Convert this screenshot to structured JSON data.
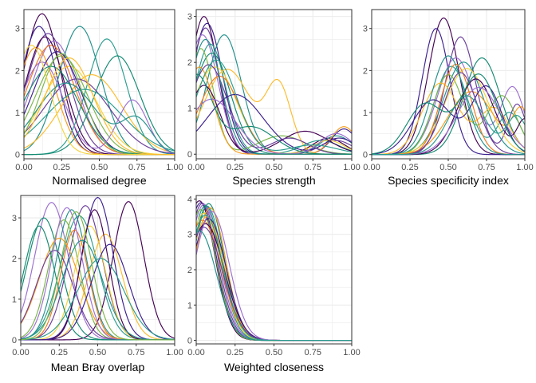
{
  "colors": {
    "palette": [
      "#440154",
      "#3b1f8f",
      "#6a3d9a",
      "#9c6fd0",
      "#21908c",
      "#2a9d8f",
      "#138a72",
      "#7ab648",
      "#f5d33b",
      "#fdbb2d",
      "#f89c1c",
      "#f37a1f"
    ],
    "grid": "#ebebeb",
    "panel_border": "#333333",
    "background": "#ffffff"
  },
  "chart_data": [
    {
      "type": "line",
      "xlabel": "Normalised degree",
      "xlim": [
        0,
        1
      ],
      "ylim": [
        -0.1,
        3.45
      ],
      "x_ticks": [
        0,
        0.25,
        0.5,
        0.75,
        1
      ],
      "x_tick_labels": [
        "0.00",
        "0.25",
        "0.50",
        "0.75",
        "1.00"
      ],
      "y_ticks": [
        0,
        1,
        2,
        3
      ],
      "y_tick_labels": [
        "0",
        "1",
        "2",
        "3"
      ],
      "grid": true,
      "series": [
        {
          "peaks": [
            [
              0.12,
              3.35,
              0.12
            ]
          ]
        },
        {
          "peaks": [
            [
              0.1,
              3.05,
              0.12
            ]
          ]
        },
        {
          "peaks": [
            [
              0.16,
              2.88,
              0.14
            ]
          ]
        },
        {
          "peaks": [
            [
              0.2,
              2.7,
              0.15
            ]
          ]
        },
        {
          "peaks": [
            [
              0.37,
              3.05,
              0.14
            ]
          ]
        },
        {
          "peaks": [
            [
              0.55,
              2.75,
              0.13
            ]
          ]
        },
        {
          "peaks": [
            [
              0.62,
              2.35,
              0.15
            ]
          ]
        },
        {
          "peaks": [
            [
              0.25,
              2.35,
              0.17
            ]
          ]
        },
        {
          "peaks": [
            [
              0.3,
              2.1,
              0.18
            ]
          ]
        },
        {
          "peaks": [
            [
              0.45,
              1.9,
              0.2
            ]
          ]
        },
        {
          "peaks": [
            [
              0.08,
              2.55,
              0.13
            ]
          ]
        },
        {
          "peaks": [
            [
              0.18,
              2.6,
              0.16
            ]
          ]
        },
        {
          "peaks": [
            [
              0.14,
              2.8,
              0.13
            ]
          ]
        },
        {
          "peaks": [
            [
              0.22,
              2.45,
              0.16
            ]
          ]
        },
        {
          "peaks": [
            [
              0.35,
              1.8,
              0.22
            ]
          ]
        },
        {
          "peaks": [
            [
              0.12,
              2.2,
              0.14
            ],
            [
              0.72,
              1.3,
              0.1
            ]
          ]
        },
        {
          "peaks": [
            [
              0.28,
              1.7,
              0.2
            ],
            [
              0.75,
              0.8,
              0.1
            ]
          ]
        },
        {
          "peaks": [
            [
              0.4,
              1.55,
              0.25
            ]
          ]
        },
        {
          "peaks": [
            [
              0.18,
              2.1,
              0.18
            ]
          ]
        },
        {
          "peaks": [
            [
              0.25,
              2.4,
              0.14
            ]
          ]
        },
        {
          "peaks": [
            [
              0.05,
              2.6,
              0.12
            ]
          ]
        },
        {
          "peaks": [
            [
              0.3,
              2.3,
              0.16
            ]
          ]
        }
      ]
    },
    {
      "type": "line",
      "xlabel": "Species strength",
      "xlim": [
        0,
        1
      ],
      "ylim": [
        -0.1,
        3.15
      ],
      "x_ticks": [
        0,
        0.25,
        0.5,
        0.75,
        1
      ],
      "x_tick_labels": [
        "0.00",
        "0.25",
        "0.50",
        "0.75",
        "1.00"
      ],
      "y_ticks": [
        0,
        1,
        2,
        3
      ],
      "y_tick_labels": [
        "0",
        "1",
        "2",
        "3"
      ],
      "grid": true,
      "series": [
        {
          "peaks": [
            [
              0.05,
              3.0,
              0.09
            ],
            [
              0.85,
              0.35,
              0.1
            ]
          ]
        },
        {
          "peaks": [
            [
              0.07,
              2.85,
              0.1
            ],
            [
              0.95,
              0.55,
              0.08
            ]
          ]
        },
        {
          "peaks": [
            [
              0.06,
              2.75,
              0.09
            ],
            [
              0.9,
              0.3,
              0.1
            ]
          ]
        },
        {
          "peaks": [
            [
              0.04,
              2.6,
              0.1
            ]
          ]
        },
        {
          "peaks": [
            [
              0.18,
              2.6,
              0.11
            ],
            [
              0.9,
              0.4,
              0.1
            ]
          ]
        },
        {
          "peaks": [
            [
              0.09,
              2.4,
              0.1
            ],
            [
              0.8,
              0.3,
              0.12
            ]
          ]
        },
        {
          "peaks": [
            [
              0.1,
              2.2,
              0.12
            ]
          ]
        },
        {
          "peaks": [
            [
              0.03,
              2.3,
              0.08
            ],
            [
              0.55,
              0.4,
              0.15
            ]
          ]
        },
        {
          "peaks": [
            [
              0.12,
              1.9,
              0.14
            ],
            [
              0.85,
              0.3,
              0.1
            ]
          ]
        },
        {
          "peaks": [
            [
              0.2,
              1.85,
              0.15
            ],
            [
              0.53,
              1.45,
              0.08
            ]
          ]
        },
        {
          "peaks": [
            [
              0.02,
              1.9,
              0.09
            ],
            [
              0.95,
              0.6,
              0.08
            ]
          ]
        },
        {
          "peaks": [
            [
              0.15,
              1.7,
              0.13
            ]
          ]
        },
        {
          "peaks": [
            [
              0.05,
              1.5,
              0.1
            ],
            [
              0.7,
              0.5,
              0.15
            ]
          ]
        },
        {
          "peaks": [
            [
              0.25,
              1.3,
              0.18
            ],
            [
              0.92,
              0.35,
              0.1
            ]
          ]
        },
        {
          "peaks": [
            [
              0.08,
              1.95,
              0.12
            ],
            [
              0.6,
              0.35,
              0.12
            ]
          ]
        },
        {
          "peaks": [
            [
              0.1,
              1.2,
              0.15
            ],
            [
              0.9,
              0.45,
              0.1
            ]
          ]
        },
        {
          "peaks": [
            [
              0.06,
              2.5,
              0.1
            ]
          ]
        },
        {
          "peaks": [
            [
              0.13,
              2.05,
              0.13
            ],
            [
              0.75,
              0.2,
              0.15
            ]
          ]
        },
        {
          "peaks": [
            [
              0.0,
              1.7,
              0.1
            ],
            [
              0.35,
              0.6,
              0.15
            ]
          ]
        }
      ]
    },
    {
      "type": "line",
      "xlabel": "Species specificity index",
      "xlim": [
        0,
        1
      ],
      "ylim": [
        -0.1,
        3.45
      ],
      "x_ticks": [
        0,
        0.25,
        0.5,
        0.75,
        1
      ],
      "x_tick_labels": [
        "0.00",
        "0.25",
        "0.50",
        "0.75",
        "1.00"
      ],
      "y_ticks": [
        0,
        1,
        2,
        3
      ],
      "y_tick_labels": [
        "0",
        "1",
        "2",
        "3"
      ],
      "grid": true,
      "series": [
        {
          "peaks": [
            [
              0.47,
              3.25,
              0.1
            ]
          ]
        },
        {
          "peaks": [
            [
              0.42,
              3.0,
              0.09
            ]
          ]
        },
        {
          "peaks": [
            [
              0.58,
              2.8,
              0.1
            ],
            [
              0.95,
              1.2,
              0.06
            ]
          ]
        },
        {
          "peaks": [
            [
              0.55,
              2.3,
              0.12
            ],
            [
              0.92,
              1.6,
              0.08
            ]
          ]
        },
        {
          "peaks": [
            [
              0.6,
              2.2,
              0.13
            ]
          ]
        },
        {
          "peaks": [
            [
              0.52,
              2.1,
              0.11
            ],
            [
              0.9,
              1.0,
              0.08
            ]
          ]
        },
        {
          "peaks": [
            [
              0.72,
              2.3,
              0.12
            ]
          ]
        },
        {
          "peaks": [
            [
              0.5,
              1.9,
              0.1
            ],
            [
              0.85,
              1.4,
              0.1
            ]
          ]
        },
        {
          "peaks": [
            [
              0.62,
              2.05,
              0.14
            ]
          ]
        },
        {
          "peaks": [
            [
              0.45,
              1.7,
              0.12
            ],
            [
              0.8,
              1.1,
              0.1
            ]
          ]
        },
        {
          "peaks": [
            [
              0.65,
              1.5,
              0.15
            ],
            [
              0.98,
              1.0,
              0.06
            ]
          ]
        },
        {
          "peaks": [
            [
              0.55,
              2.15,
              0.1
            ]
          ]
        },
        {
          "peaks": [
            [
              0.68,
              1.8,
              0.12
            ],
            [
              1.0,
              0.8,
              0.05
            ]
          ]
        },
        {
          "peaks": [
            [
              0.4,
              1.3,
              0.13
            ],
            [
              0.75,
              1.6,
              0.1
            ]
          ]
        },
        {
          "peaks": [
            [
              0.58,
              1.95,
              0.11
            ]
          ]
        },
        {
          "peaks": [
            [
              0.7,
              1.6,
              0.14
            ]
          ]
        },
        {
          "peaks": [
            [
              0.5,
              2.35,
              0.11
            ]
          ]
        },
        {
          "peaks": [
            [
              0.62,
              1.4,
              0.12
            ],
            [
              0.95,
              0.9,
              0.07
            ]
          ]
        },
        {
          "peaks": [
            [
              0.35,
              1.2,
              0.12
            ],
            [
              0.7,
              1.9,
              0.12
            ]
          ]
        }
      ]
    },
    {
      "type": "line",
      "xlabel": "Mean Bray overlap",
      "xlim": [
        0,
        1
      ],
      "ylim": [
        -0.1,
        3.55
      ],
      "x_ticks": [
        0,
        0.25,
        0.5,
        0.75,
        1
      ],
      "x_tick_labels": [
        "0.00",
        "0.25",
        "0.50",
        "0.75",
        "1.00"
      ],
      "y_ticks": [
        0,
        1,
        2,
        3
      ],
      "y_tick_labels": [
        "0",
        "1",
        "2",
        "3"
      ],
      "grid": true,
      "series": [
        {
          "peaks": [
            [
              0.7,
              3.4,
              0.1
            ]
          ]
        },
        {
          "peaks": [
            [
              0.5,
              3.5,
              0.1
            ]
          ]
        },
        {
          "peaks": [
            [
              0.42,
              3.3,
              0.11
            ]
          ]
        },
        {
          "peaks": [
            [
              0.2,
              3.38,
              0.11
            ]
          ]
        },
        {
          "peaks": [
            [
              0.33,
              3.2,
              0.1
            ]
          ]
        },
        {
          "peaks": [
            [
              0.38,
              3.05,
              0.12
            ]
          ]
        },
        {
          "peaks": [
            [
              0.15,
              3.0,
              0.11
            ]
          ]
        },
        {
          "peaks": [
            [
              0.28,
              2.95,
              0.1
            ]
          ]
        },
        {
          "peaks": [
            [
              0.45,
              2.8,
              0.1
            ]
          ]
        },
        {
          "peaks": [
            [
              0.55,
              2.6,
              0.11
            ]
          ]
        },
        {
          "peaks": [
            [
              0.25,
              2.5,
              0.13
            ]
          ]
        },
        {
          "peaks": [
            [
              0.35,
              2.7,
              0.09
            ]
          ]
        },
        {
          "peaks": [
            [
              0.48,
              3.2,
              0.09
            ]
          ]
        },
        {
          "peaks": [
            [
              0.58,
              2.35,
              0.12
            ]
          ]
        },
        {
          "peaks": [
            [
              0.22,
              2.2,
              0.12
            ]
          ]
        },
        {
          "peaks": [
            [
              0.3,
              3.25,
              0.1
            ]
          ]
        },
        {
          "peaks": [
            [
              0.4,
              2.45,
              0.13
            ]
          ]
        },
        {
          "peaks": [
            [
              0.52,
              2.0,
              0.15
            ]
          ]
        },
        {
          "peaks": [
            [
              0.12,
              2.8,
              0.1
            ]
          ]
        },
        {
          "peaks": [
            [
              0.36,
              3.15,
              0.1
            ]
          ]
        }
      ]
    },
    {
      "type": "line",
      "xlabel": "Weighted closeness",
      "xlim": [
        0,
        1
      ],
      "ylim": [
        -0.1,
        4.1
      ],
      "x_ticks": [
        0,
        0.25,
        0.5,
        0.75,
        1
      ],
      "x_tick_labels": [
        "0.00",
        "0.25",
        "0.50",
        "0.75",
        "1.00"
      ],
      "y_ticks": [
        0,
        1,
        2,
        3,
        4
      ],
      "y_tick_labels": [
        "0",
        "1",
        "2",
        "3",
        "4"
      ],
      "grid": true,
      "series": [
        {
          "peaks": [
            [
              0.02,
              3.95,
              0.1
            ]
          ]
        },
        {
          "peaks": [
            [
              0.03,
              3.9,
              0.1
            ]
          ]
        },
        {
          "peaks": [
            [
              0.04,
              3.88,
              0.1
            ]
          ]
        },
        {
          "peaks": [
            [
              0.05,
              3.85,
              0.1
            ]
          ]
        },
        {
          "peaks": [
            [
              0.06,
              3.82,
              0.1
            ]
          ]
        },
        {
          "peaks": [
            [
              0.07,
              3.8,
              0.1
            ]
          ]
        },
        {
          "peaks": [
            [
              0.08,
              3.87,
              0.1
            ]
          ]
        },
        {
          "peaks": [
            [
              0.03,
              3.7,
              0.1
            ]
          ]
        },
        {
          "peaks": [
            [
              0.05,
              3.6,
              0.11
            ]
          ]
        },
        {
          "peaks": [
            [
              0.07,
              3.5,
              0.11
            ]
          ]
        },
        {
          "peaks": [
            [
              0.09,
              3.75,
              0.1
            ]
          ]
        },
        {
          "peaks": [
            [
              0.04,
              3.4,
              0.12
            ]
          ]
        },
        {
          "peaks": [
            [
              0.06,
              3.3,
              0.12
            ]
          ]
        },
        {
          "peaks": [
            [
              0.08,
              3.45,
              0.11
            ]
          ]
        },
        {
          "peaks": [
            [
              0.05,
              3.2,
              0.12
            ]
          ]
        },
        {
          "peaks": [
            [
              0.1,
              3.65,
              0.11
            ]
          ]
        },
        {
          "peaks": [
            [
              0.02,
              3.1,
              0.11
            ]
          ]
        },
        {
          "peaks": [
            [
              0.06,
              3.55,
              0.11
            ]
          ]
        }
      ]
    }
  ]
}
